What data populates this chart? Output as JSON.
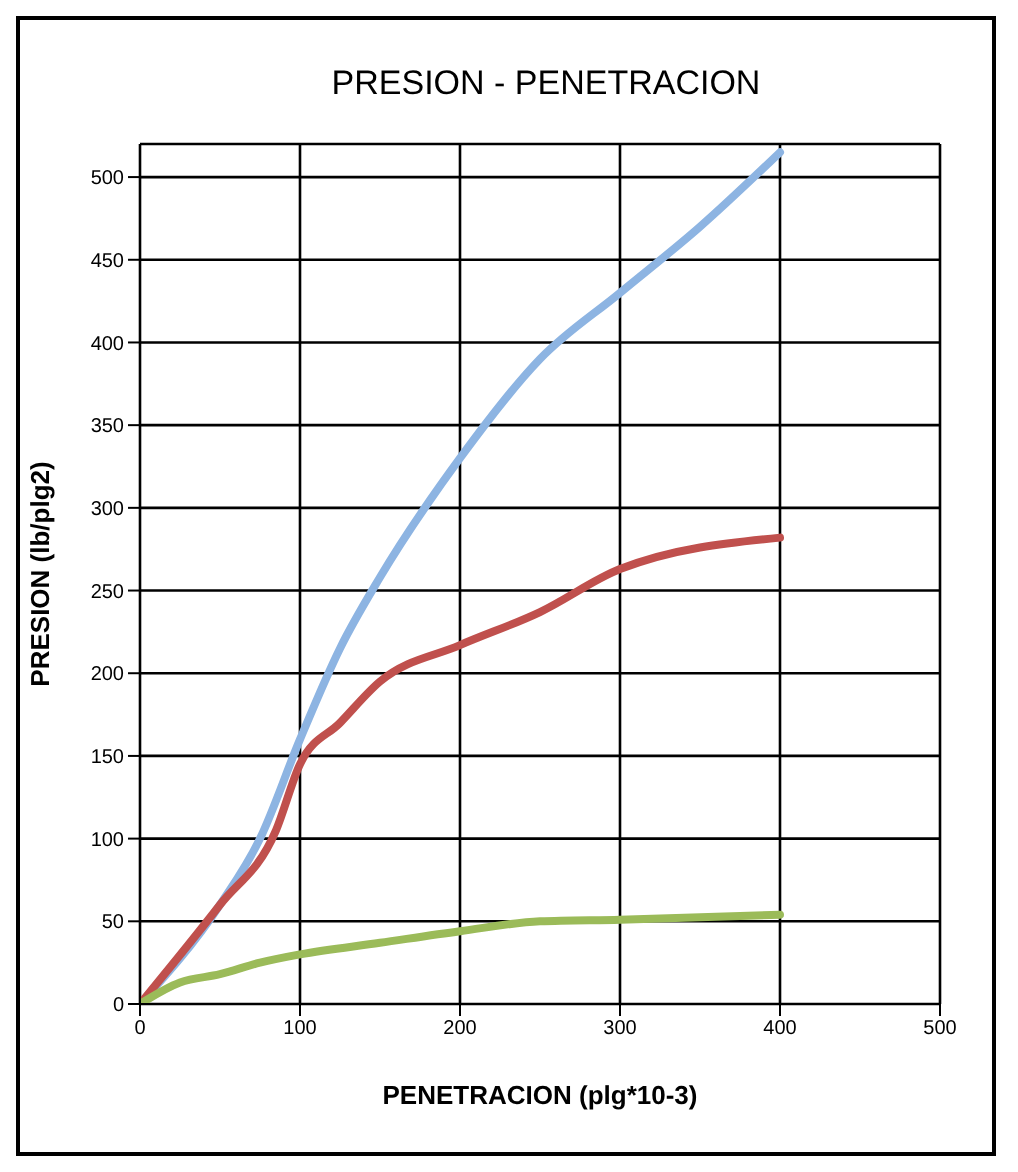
{
  "chart_data": {
    "type": "line",
    "title": "PRESION  - PENETRACION",
    "xlabel": "PENETRACION (plg*10-3)",
    "ylabel": "PRESION (lb/plg2)",
    "xlim": [
      0,
      500
    ],
    "xticks": [
      0,
      100,
      200,
      300,
      400,
      500
    ],
    "ylim": [
      0,
      520
    ],
    "yticks": [
      0,
      50,
      100,
      150,
      200,
      250,
      300,
      350,
      400,
      450,
      500
    ],
    "grid": true,
    "marker": "none",
    "line_style": "solid",
    "series": [
      {
        "color": "#8db4e2",
        "x": [
          0,
          50,
          75,
          100,
          125,
          150,
          200,
          250,
          300,
          350,
          400
        ],
        "values": [
          0,
          60,
          100,
          160,
          215,
          258,
          330,
          390,
          430,
          470,
          515
        ]
      },
      {
        "color": "#c0504d",
        "x": [
          0,
          50,
          85,
          100,
          125,
          150,
          200,
          250,
          300,
          400
        ],
        "values": [
          0,
          60,
          105,
          145,
          170,
          195,
          217,
          237,
          263,
          282
        ]
      },
      {
        "color": "#9bbb59",
        "x": [
          0,
          25,
          50,
          75,
          100,
          150,
          200,
          250,
          300,
          400
        ],
        "values": [
          0,
          13,
          18,
          25,
          30,
          37,
          44,
          50,
          51,
          54
        ]
      }
    ]
  }
}
